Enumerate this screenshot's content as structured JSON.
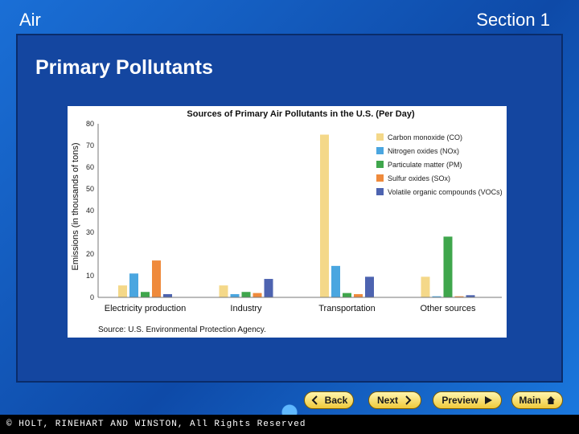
{
  "header": {
    "left": "Air",
    "right": "Section 1"
  },
  "slide_title": "Primary Pollutants",
  "nav": {
    "back": "Back",
    "next": "Next",
    "preview": "Preview",
    "main": "Main"
  },
  "footer": "© HOLT, RINEHART AND WINSTON, All Rights Reserved",
  "colors": {
    "co": "#f4d889",
    "nox": "#4aa6e0",
    "pm": "#3fa64c",
    "sox": "#ef8a3c",
    "voc": "#4d63b0"
  },
  "chart_data": {
    "type": "bar",
    "title": "Sources of Primary Air Pollutants in the U.S. (Per Day)",
    "ylabel": "Emissions (in thousands of tons)",
    "source": "Source: U.S. Environmental Protection Agency.",
    "ylim": [
      0,
      80
    ],
    "yticks": [
      "0",
      "10",
      "20",
      "30",
      "40",
      "50",
      "60",
      "70",
      "80"
    ],
    "categories": [
      "Electricity production",
      "Industry",
      "Transportation",
      "Other sources"
    ],
    "series": [
      {
        "name": "Carbon monoxide (CO)",
        "values": [
          5.5,
          5.5,
          75,
          9.5
        ]
      },
      {
        "name": "Nitrogen oxides (NOx)",
        "values": [
          11,
          1.5,
          14.5,
          0.5
        ]
      },
      {
        "name": "Particulate matter (PM)",
        "values": [
          2.5,
          2.5,
          2,
          28
        ]
      },
      {
        "name": "Sulfur oxides (SOx)",
        "values": [
          17,
          2,
          1.5,
          0.5
        ]
      },
      {
        "name": "Volatile organic compounds (VOCs)",
        "values": [
          1.5,
          8.5,
          9.5,
          1
        ]
      }
    ],
    "legend": "top-right",
    "grid": false
  }
}
